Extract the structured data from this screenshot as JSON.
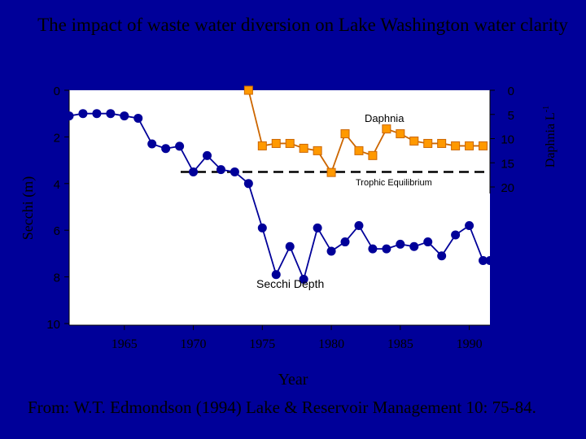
{
  "title": "The impact of waste water diversion on Lake Washington water clarity",
  "source": "From: W.T. Edmondson (1994) Lake & Reservoir Management 10: 75-84.",
  "colors": {
    "background": "#000099",
    "text": "#000000",
    "secchi_series": "#000099",
    "daphnia_series": "#CC6600",
    "daphnia_marker": "#FF9900",
    "plot_area": "#FFFFFF"
  },
  "chart_data": {
    "type": "line",
    "xlabel": "Year",
    "ylabel_left": "Secchi (m)",
    "ylabel_right_base": "Daphnia L",
    "ylabel_right_sup": "-1",
    "x_ticks": [
      "1965",
      "1970",
      "1975",
      "1980",
      "1985",
      "1990"
    ],
    "x_tick_values": [
      1965,
      1970,
      1975,
      1980,
      1985,
      1990
    ],
    "xlim": [
      1961,
      1991.5
    ],
    "y_left_ticks": [
      "0",
      "2",
      "4",
      "6",
      "8",
      "10"
    ],
    "y_left_values": [
      0,
      2,
      4,
      6,
      8,
      10
    ],
    "ylim_left": [
      0,
      10
    ],
    "y_left_inverted": true,
    "y_right_ticks": [
      "0",
      "5",
      "10",
      "15",
      "20"
    ],
    "y_right_values": [
      0,
      5,
      10,
      15,
      20
    ],
    "ylim_right": [
      0,
      20
    ],
    "y_right_inverted": true,
    "grid": false,
    "annotations": {
      "daphnia": "Daphnia",
      "trophic": "Trophic Equilibrium",
      "secchi": "Secchi Depth"
    },
    "trophic_equilibrium_secchi": 3.5,
    "series": [
      {
        "name": "Secchi Depth",
        "axis": "left",
        "x": [
          1961,
          1962,
          1963,
          1964,
          1965,
          1966,
          1967,
          1968,
          1969,
          1970,
          1971,
          1972,
          1973,
          1974,
          1975,
          1976,
          1977,
          1978,
          1979,
          1980,
          1981,
          1982,
          1983,
          1984,
          1985,
          1986,
          1987,
          1988,
          1989,
          1990,
          1991,
          1991.5
        ],
        "values": [
          1.1,
          1.0,
          1.0,
          1.0,
          1.1,
          1.2,
          2.3,
          2.5,
          2.4,
          3.5,
          2.8,
          3.4,
          3.5,
          4.0,
          5.9,
          7.9,
          6.7,
          8.1,
          5.9,
          6.9,
          6.5,
          5.8,
          6.8,
          6.8,
          6.6,
          6.7,
          6.5,
          7.1,
          6.2,
          5.8,
          7.3,
          7.3
        ],
        "x_plot": [
          1961,
          1962,
          1963,
          1964,
          1965,
          1966,
          1967,
          1968,
          1969,
          1970,
          1971,
          1972,
          1973,
          1974,
          1975,
          1976,
          1977,
          1978,
          1979,
          1980,
          1981,
          1982,
          1983,
          1984,
          1985,
          1986,
          1987,
          1988,
          1989,
          1990,
          1991
        ]
      },
      {
        "name": "Daphnia",
        "axis": "right",
        "x": [
          1974,
          1975,
          1976,
          1977,
          1978,
          1979,
          1980,
          1981,
          1982,
          1983,
          1984,
          1985,
          1986,
          1987,
          1988,
          1989,
          1990,
          1991
        ],
        "values": [
          0,
          11.5,
          11,
          11,
          12,
          12.5,
          17,
          9,
          12.5,
          13.5,
          8,
          9,
          10.5,
          11,
          11,
          11.5,
          11.5,
          11.5
        ]
      }
    ]
  }
}
